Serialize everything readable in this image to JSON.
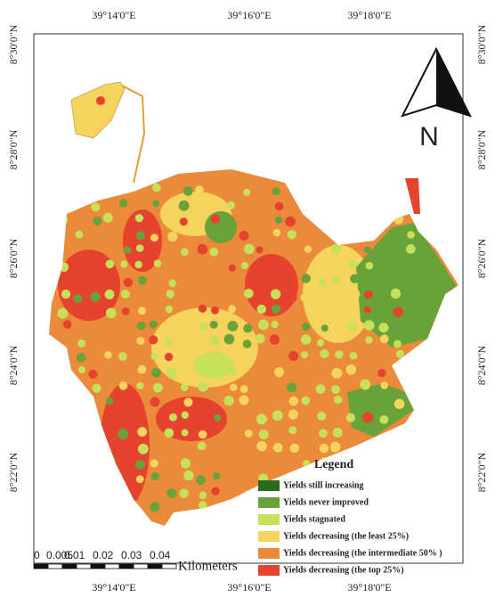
{
  "map": {
    "top_labels": [
      "39°14'0\"E",
      "39°16'0\"E",
      "39°18'0\"E"
    ],
    "bottom_labels": [
      "39°14'0\"E",
      "39°16'0\"E",
      "39°18'0\"E"
    ],
    "left_labels": [
      "8°30'0\"N",
      "8°28'0\"N",
      "8°26'0\"N",
      "8°24'0\"N",
      "8°22'0\"N"
    ],
    "right_labels": [
      "8°30'0\"N",
      "8°28'0\"N",
      "8°26'0\"N",
      "8°24'0\"N",
      "8°22'0\"N"
    ],
    "north": "N",
    "legend": {
      "title": "Legend",
      "items": [
        {
          "label": "Yields still increasing",
          "color": "#2a6a1e"
        },
        {
          "label": "Yields never improved",
          "color": "#6aa23a"
        },
        {
          "label": "Yields stagnated",
          "color": "#c6e05a"
        },
        {
          "label": "Yields decreasing (the least 25%)",
          "color": "#f6d35c"
        },
        {
          "label": "Yields decreasing (the intermediate 50% )",
          "color": "#ec8a3c"
        },
        {
          "label": "Yields decreasing (the top 25%)",
          "color": "#e5432e"
        }
      ]
    },
    "scale": {
      "ticks": [
        0,
        0.005,
        0.01,
        0.02,
        0.03,
        0.04
      ],
      "unit": "Kilometers"
    }
  }
}
